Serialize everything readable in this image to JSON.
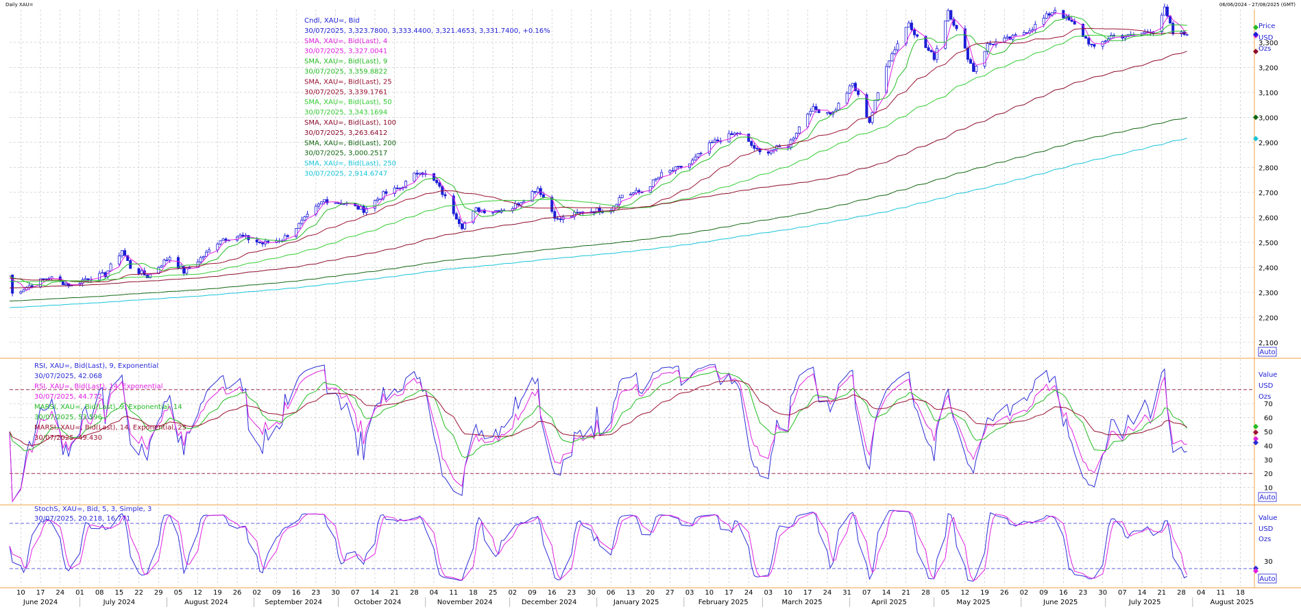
{
  "header": {
    "left": "Daily XAU=",
    "right": "06/06/2024 - 27/08/2025 (GMT)"
  },
  "colors": {
    "candle": "#1d1dd6",
    "sma4": "#e020e0",
    "sma9": "#22bb22",
    "sma25": "#9a1030",
    "sma50": "#33cc33",
    "sma100": "#8b0a2a",
    "sma200": "#116611",
    "sma250": "#17c4d8",
    "rsi9": "#2b2bd8",
    "rsi14": "#e020e0",
    "marsi9": "#22bb22",
    "marsi14": "#9a1030",
    "stochK": "#2b2bd8",
    "stochD": "#e020e0",
    "grid": "#bfbfbf",
    "separator": "#f0a040"
  },
  "panels": {
    "price": {
      "legend": [
        {
          "text": "Cndl, XAU=, Bid",
          "color": "#1d1dd6"
        },
        {
          "text": "30/07/2025, 3,323.7800, 3,333.4400, 3,321.4653, 3,331.7400, +0.16%",
          "color": "#1d1dd6"
        },
        {
          "text": "SMA, XAU=, Bid(Last), 4",
          "color": "#e020e0"
        },
        {
          "text": "30/07/2025, 3,327.0041",
          "color": "#e020e0"
        },
        {
          "text": "SMA, XAU=, Bid(Last), 9",
          "color": "#22bb22"
        },
        {
          "text": "30/07/2025, 3,359.8822",
          "color": "#22bb22"
        },
        {
          "text": "SMA, XAU=, Bid(Last), 25",
          "color": "#9a1030"
        },
        {
          "text": "30/07/2025, 3,339.1761",
          "color": "#9a1030"
        },
        {
          "text": "SMA, XAU=, Bid(Last), 50",
          "color": "#33cc33"
        },
        {
          "text": "30/07/2025, 3,343.1694",
          "color": "#33cc33"
        },
        {
          "text": "SMA, XAU=, Bid(Last), 100",
          "color": "#8b0a2a"
        },
        {
          "text": "30/07/2025, 3,263.6412",
          "color": "#8b0a2a"
        },
        {
          "text": "SMA, XAU=, Bid(Last), 200",
          "color": "#116611"
        },
        {
          "text": "30/07/2025, 3,000.2517",
          "color": "#116611"
        },
        {
          "text": "SMA, XAU=, Bid(Last), 250",
          "color": "#17c4d8"
        },
        {
          "text": "30/07/2025, 2,914.6747",
          "color": "#17c4d8"
        }
      ],
      "axis_title": [
        "Price",
        "USD",
        "Ozs"
      ],
      "auto": "Auto"
    },
    "rsi": {
      "legend": [
        {
          "text": "RSI, XAU=, Bid(Last), 9, Exponential",
          "color": "#2b2bd8"
        },
        {
          "text": "30/07/2025, 42.068",
          "color": "#2b2bd8"
        },
        {
          "text": "RSI, XAU=, Bid(Last), 14, Exponential",
          "color": "#e020e0"
        },
        {
          "text": "30/07/2025, 44.772",
          "color": "#e020e0"
        },
        {
          "text": "MARSI, XAU=, Bid(Last), 9, Exponential, 14",
          "color": "#22bb22"
        },
        {
          "text": "30/07/2025, 53.596",
          "color": "#22bb22"
        },
        {
          "text": "MARSI, XAU=, Bid(Last), 14, Exponential, 25",
          "color": "#9a1030"
        },
        {
          "text": "30/07/2025, 49.430",
          "color": "#9a1030"
        }
      ],
      "axis_title": [
        "Value",
        "USD",
        "Ozs"
      ],
      "auto": "Auto"
    },
    "stoch": {
      "legend": [
        {
          "text": "StochS, XAU=, Bid, 5, 3, Simple, 3",
          "color": "#2b2bd8"
        },
        {
          "text": "30/07/2025, 20.218, 16.771",
          "color": "#2b2bd8"
        }
      ],
      "axis_title": [
        "Value",
        "USD",
        "Ozs"
      ],
      "auto": "Auto"
    }
  },
  "chart_data": [
    {
      "type": "line",
      "panel": "price",
      "series_kind": "candlestick with moving averages",
      "date_range": [
        "2024-06-06",
        "2025-07-30"
      ],
      "ylim": [
        2050,
        3420
      ],
      "y_ticks": [
        "2,100",
        "2,200",
        "2,300",
        "2,400",
        "2,500",
        "2,600",
        "2,700",
        "2,800",
        "2,900",
        "3,000",
        "3,100",
        "3,200",
        "3,300"
      ],
      "y_tick_values": [
        2100,
        2200,
        2300,
        2400,
        2500,
        2600,
        2700,
        2800,
        2900,
        3000,
        3100,
        3200,
        3300
      ],
      "x_ticks": [
        {
          "date": "2024-06-10",
          "label": "10"
        },
        {
          "date": "2024-06-17",
          "label": "17"
        },
        {
          "date": "2024-06-24",
          "label": "24"
        },
        {
          "date": "2024-07-01",
          "label": "01"
        },
        {
          "date": "2024-07-08",
          "label": "08"
        },
        {
          "date": "2024-07-15",
          "label": "15"
        },
        {
          "date": "2024-07-22",
          "label": "22"
        },
        {
          "date": "2024-07-29",
          "label": "29"
        },
        {
          "date": "2024-08-05",
          "label": "05"
        },
        {
          "date": "2024-08-12",
          "label": "12"
        },
        {
          "date": "2024-08-19",
          "label": "19"
        },
        {
          "date": "2024-08-26",
          "label": "26"
        },
        {
          "date": "2024-09-02",
          "label": "02"
        },
        {
          "date": "2024-09-09",
          "label": "09"
        },
        {
          "date": "2024-09-16",
          "label": "16"
        },
        {
          "date": "2024-09-23",
          "label": "23"
        },
        {
          "date": "2024-09-30",
          "label": "30"
        },
        {
          "date": "2024-10-07",
          "label": "07"
        },
        {
          "date": "2024-10-14",
          "label": "14"
        },
        {
          "date": "2024-10-21",
          "label": "21"
        },
        {
          "date": "2024-10-28",
          "label": "28"
        },
        {
          "date": "2024-11-04",
          "label": "04"
        },
        {
          "date": "2024-11-11",
          "label": "11"
        },
        {
          "date": "2024-11-18",
          "label": "18"
        },
        {
          "date": "2024-11-25",
          "label": "25"
        },
        {
          "date": "2024-12-02",
          "label": "02"
        },
        {
          "date": "2024-12-09",
          "label": "09"
        },
        {
          "date": "2024-12-16",
          "label": "16"
        },
        {
          "date": "2024-12-23",
          "label": "23"
        },
        {
          "date": "2024-12-30",
          "label": "30"
        },
        {
          "date": "2025-01-06",
          "label": "06"
        },
        {
          "date": "2025-01-13",
          "label": "13"
        },
        {
          "date": "2025-01-20",
          "label": "20"
        },
        {
          "date": "2025-01-27",
          "label": "27"
        },
        {
          "date": "2025-02-03",
          "label": "03"
        },
        {
          "date": "2025-02-10",
          "label": "10"
        },
        {
          "date": "2025-02-17",
          "label": "17"
        },
        {
          "date": "2025-02-24",
          "label": "24"
        },
        {
          "date": "2025-03-03",
          "label": "03"
        },
        {
          "date": "2025-03-10",
          "label": "10"
        },
        {
          "date": "2025-03-17",
          "label": "17"
        },
        {
          "date": "2025-03-24",
          "label": "24"
        },
        {
          "date": "2025-03-31",
          "label": "31"
        },
        {
          "date": "2025-04-07",
          "label": "07"
        },
        {
          "date": "2025-04-14",
          "label": "14"
        },
        {
          "date": "2025-04-21",
          "label": "21"
        },
        {
          "date": "2025-04-28",
          "label": "28"
        },
        {
          "date": "2025-05-05",
          "label": "05"
        },
        {
          "date": "2025-05-12",
          "label": "12"
        },
        {
          "date": "2025-05-19",
          "label": "19"
        },
        {
          "date": "2025-05-26",
          "label": "26"
        },
        {
          "date": "2025-06-02",
          "label": "02"
        },
        {
          "date": "2025-06-09",
          "label": "09"
        },
        {
          "date": "2025-06-16",
          "label": "16"
        },
        {
          "date": "2025-06-23",
          "label": "23"
        },
        {
          "date": "2025-06-30",
          "label": "30"
        },
        {
          "date": "2025-07-07",
          "label": "07"
        },
        {
          "date": "2025-07-14",
          "label": "14"
        },
        {
          "date": "2025-07-21",
          "label": "21"
        },
        {
          "date": "2025-07-28",
          "label": "28"
        },
        {
          "date": "2025-08-04",
          "label": "04"
        },
        {
          "date": "2025-08-11",
          "label": "11"
        },
        {
          "date": "2025-08-18",
          "label": "18"
        }
      ],
      "months": [
        {
          "date": "2024-06-17",
          "label": "June 2024"
        },
        {
          "date": "2024-07-15",
          "label": "July 2024"
        },
        {
          "date": "2024-08-15",
          "label": "August 2024"
        },
        {
          "date": "2024-09-15",
          "label": "September 2024"
        },
        {
          "date": "2024-10-15",
          "label": "October 2024"
        },
        {
          "date": "2024-11-15",
          "label": "November 2024"
        },
        {
          "date": "2024-12-15",
          "label": "December 2024"
        },
        {
          "date": "2025-01-15",
          "label": "January 2025"
        },
        {
          "date": "2025-02-15",
          "label": "February 2025"
        },
        {
          "date": "2025-03-15",
          "label": "March 2025"
        },
        {
          "date": "2025-04-15",
          "label": "April 2025"
        },
        {
          "date": "2025-05-15",
          "label": "May 2025"
        },
        {
          "date": "2025-06-15",
          "label": "June 2025"
        },
        {
          "date": "2025-07-15",
          "label": "July 2025"
        },
        {
          "date": "2025-08-15",
          "label": "August 2025"
        }
      ],
      "close_anchors": [
        [
          "2024-06-06",
          2370
        ],
        [
          "2024-06-07",
          2295
        ],
        [
          "2024-06-14",
          2332
        ],
        [
          "2024-06-20",
          2360
        ],
        [
          "2024-06-28",
          2327
        ],
        [
          "2024-07-03",
          2355
        ],
        [
          "2024-07-10",
          2371
        ],
        [
          "2024-07-16",
          2469
        ],
        [
          "2024-07-19",
          2400
        ],
        [
          "2024-07-25",
          2364
        ],
        [
          "2024-08-02",
          2443
        ],
        [
          "2024-08-07",
          2382
        ],
        [
          "2024-08-15",
          2455
        ],
        [
          "2024-08-20",
          2513
        ],
        [
          "2024-08-27",
          2525
        ],
        [
          "2024-09-04",
          2495
        ],
        [
          "2024-09-11",
          2512
        ],
        [
          "2024-09-17",
          2570
        ],
        [
          "2024-09-26",
          2670
        ],
        [
          "2024-10-03",
          2656
        ],
        [
          "2024-10-10",
          2630
        ],
        [
          "2024-10-17",
          2692
        ],
        [
          "2024-10-23",
          2718
        ],
        [
          "2024-10-30",
          2788
        ],
        [
          "2024-11-05",
          2735
        ],
        [
          "2024-11-14",
          2565
        ],
        [
          "2024-11-19",
          2631
        ],
        [
          "2024-11-25",
          2625
        ],
        [
          "2024-12-02",
          2640
        ],
        [
          "2024-12-11",
          2718
        ],
        [
          "2024-12-18",
          2588
        ],
        [
          "2024-12-27",
          2622
        ],
        [
          "2025-01-06",
          2635
        ],
        [
          "2025-01-10",
          2690
        ],
        [
          "2025-01-17",
          2702
        ],
        [
          "2025-01-24",
          2770
        ],
        [
          "2025-02-03",
          2814
        ],
        [
          "2025-02-11",
          2898
        ],
        [
          "2025-02-20",
          2938
        ],
        [
          "2025-02-28",
          2857
        ],
        [
          "2025-03-10",
          2888
        ],
        [
          "2025-03-18",
          3035
        ],
        [
          "2025-03-26",
          3018
        ],
        [
          "2025-04-02",
          3134
        ],
        [
          "2025-04-08",
          2983
        ],
        [
          "2025-04-14",
          3212
        ],
        [
          "2025-04-22",
          3381
        ],
        [
          "2025-04-25",
          3319
        ],
        [
          "2025-05-01",
          3240
        ],
        [
          "2025-05-06",
          3430
        ],
        [
          "2025-05-15",
          3188
        ],
        [
          "2025-05-20",
          3290
        ],
        [
          "2025-05-29",
          3318
        ],
        [
          "2025-06-05",
          3358
        ],
        [
          "2025-06-13",
          3432
        ],
        [
          "2025-06-20",
          3368
        ],
        [
          "2025-06-27",
          3274
        ],
        [
          "2025-07-03",
          3327
        ],
        [
          "2025-07-10",
          3324
        ],
        [
          "2025-07-18",
          3350
        ],
        [
          "2025-07-22",
          3432
        ],
        [
          "2025-07-25",
          3335
        ],
        [
          "2025-07-30",
          3331.74
        ]
      ],
      "last_candle": {
        "date": "2025-07-30",
        "open": 3323.78,
        "high": 3333.44,
        "low": 3321.4653,
        "close": 3331.74,
        "change": "+0.16%"
      },
      "moving_averages_last": {
        "SMA 4": 3327.0041,
        "SMA 9": 3359.8822,
        "SMA 25": 3339.1761,
        "SMA 50": 3343.1694,
        "SMA 100": 3263.6412,
        "SMA 200": 3000.2517,
        "SMA 250": 2914.6747
      }
    },
    {
      "type": "line",
      "panel": "rsi",
      "ylim": [
        0,
        100
      ],
      "y_ticks": [
        "10",
        "20",
        "30",
        "40",
        "50",
        "60",
        "70"
      ],
      "y_tick_values": [
        10,
        20,
        30,
        40,
        50,
        60,
        70
      ],
      "reference_lines": [
        20,
        80
      ],
      "series_last": {
        "RSI 9": 42.068,
        "RSI 14": 44.772,
        "MARSI 9": 53.596,
        "MARSI 14": 49.43
      }
    },
    {
      "type": "line",
      "panel": "stoch",
      "ylim": [
        0,
        100
      ],
      "y_ticks": [
        "30"
      ],
      "y_tick_values": [
        30
      ],
      "reference_lines": [
        20,
        80
      ],
      "series_last": {
        "%K": 20.218,
        "%D": 16.771
      }
    }
  ]
}
